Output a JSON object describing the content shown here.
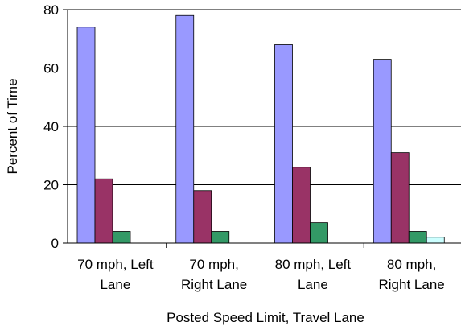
{
  "chart_data": {
    "type": "bar",
    "title": "",
    "xlabel": "Posted Speed Limit, Travel Lane",
    "ylabel": "Percent of Time",
    "ylim": [
      0,
      80
    ],
    "yticks": [
      0,
      20,
      40,
      60,
      80
    ],
    "grid": true,
    "categories": [
      [
        "70 mph, Left",
        "Lane"
      ],
      [
        "70 mph,",
        "Right Lane"
      ],
      [
        "80 mph, Left",
        "Lane"
      ],
      [
        "80 mph,",
        "Right Lane"
      ]
    ],
    "series": [
      {
        "color": "#9999ff",
        "values": [
          74,
          78,
          68,
          63
        ]
      },
      {
        "color": "#993366",
        "values": [
          22,
          18,
          26,
          31
        ]
      },
      {
        "color": "#339966",
        "values": [
          4,
          4,
          7,
          4
        ]
      },
      {
        "color": "#ccffff",
        "values": [
          0,
          0,
          0,
          2
        ]
      }
    ]
  }
}
